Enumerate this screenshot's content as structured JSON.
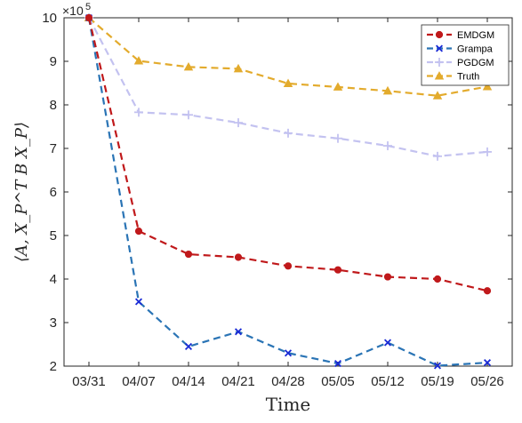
{
  "chart_data": {
    "type": "line",
    "xlabel": "Time",
    "ylabel": "⟨A, X_P^T B X_P⟩",
    "y_exponent_label": "×10",
    "y_exponent_power": "5",
    "categories": [
      "03/31",
      "04/07",
      "04/14",
      "04/21",
      "04/28",
      "05/05",
      "05/12",
      "05/19",
      "05/26"
    ],
    "yticks": [
      "2",
      "3",
      "4",
      "5",
      "6",
      "7",
      "8",
      "9",
      "10"
    ],
    "ylim": [
      2,
      10
    ],
    "grid": false,
    "legend_position": "top-right",
    "series": [
      {
        "name": "EMDGM",
        "color": "#c0191b",
        "marker": "dot",
        "values": [
          10,
          5.1,
          4.57,
          4.5,
          4.3,
          4.21,
          4.05,
          4.0,
          3.73
        ]
      },
      {
        "name": "Grampa",
        "color": "#2a74b5",
        "marker": "x",
        "values": [
          10,
          3.48,
          2.45,
          2.79,
          2.3,
          2.06,
          2.54,
          2.01,
          2.08
        ]
      },
      {
        "name": "PGDGM",
        "color": "#c3c2f0",
        "marker": "plus",
        "values": [
          10,
          7.83,
          7.77,
          7.59,
          7.35,
          7.23,
          7.06,
          6.82,
          6.92
        ]
      },
      {
        "name": "Truth",
        "color": "#e3ab2d",
        "marker": "triangle",
        "values": [
          10,
          9.01,
          8.87,
          8.83,
          8.49,
          8.41,
          8.32,
          8.21,
          8.42
        ]
      }
    ]
  }
}
